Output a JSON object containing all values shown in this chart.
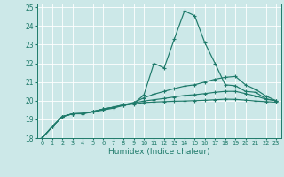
{
  "xlabel": "Humidex (Indice chaleur)",
  "xlim": [
    -0.5,
    23.5
  ],
  "ylim": [
    18,
    25.2
  ],
  "xticks": [
    0,
    1,
    2,
    3,
    4,
    5,
    6,
    7,
    8,
    9,
    10,
    11,
    12,
    13,
    14,
    15,
    16,
    17,
    18,
    19,
    20,
    21,
    22,
    23
  ],
  "yticks": [
    18,
    19,
    20,
    21,
    22,
    23,
    24,
    25
  ],
  "bg_color": "#cce8e8",
  "line_color": "#1e7a6a",
  "grid_color": "#ffffff",
  "series": [
    [
      18.0,
      18.6,
      19.15,
      19.3,
      19.3,
      19.4,
      19.5,
      19.6,
      19.75,
      19.85,
      20.3,
      22.0,
      21.75,
      23.3,
      24.8,
      24.55,
      23.1,
      22.0,
      20.85,
      20.8,
      20.5,
      20.45,
      20.1,
      20.0
    ],
    [
      18.0,
      18.6,
      19.15,
      19.3,
      19.32,
      19.42,
      19.55,
      19.65,
      19.78,
      19.9,
      20.15,
      20.35,
      20.5,
      20.65,
      20.78,
      20.85,
      21.0,
      21.15,
      21.25,
      21.3,
      20.85,
      20.6,
      20.25,
      20.0
    ],
    [
      18.0,
      18.6,
      19.15,
      19.3,
      19.32,
      19.42,
      19.55,
      19.65,
      19.78,
      19.88,
      19.98,
      20.05,
      20.12,
      20.2,
      20.28,
      20.32,
      20.38,
      20.45,
      20.5,
      20.5,
      20.38,
      20.25,
      20.08,
      20.0
    ],
    [
      18.0,
      18.6,
      19.15,
      19.3,
      19.32,
      19.42,
      19.55,
      19.65,
      19.75,
      19.82,
      19.9,
      19.93,
      19.95,
      19.97,
      19.98,
      20.0,
      20.02,
      20.05,
      20.08,
      20.07,
      20.03,
      19.98,
      19.95,
      19.92
    ]
  ]
}
